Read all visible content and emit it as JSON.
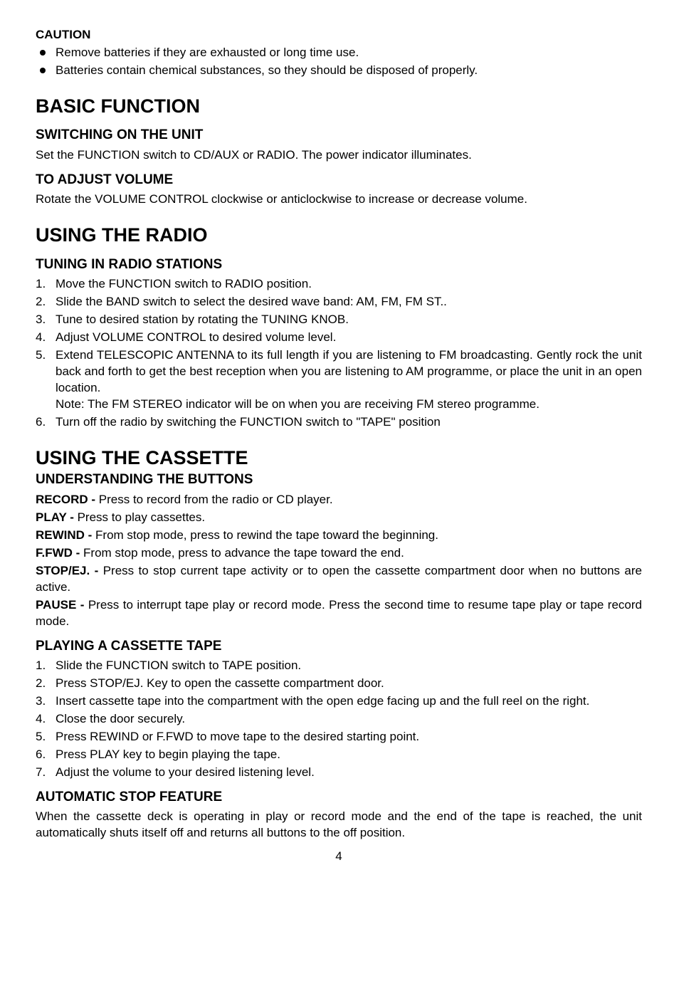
{
  "caution": {
    "title": "CAUTION",
    "items": [
      "Remove batteries if they are exhausted or long time use.",
      "Batteries contain chemical substances, so they should be disposed of properly."
    ]
  },
  "basic_function": {
    "title": "BASIC FUNCTION",
    "switching": {
      "heading": "SWITCHING ON THE UNIT",
      "text": "Set the FUNCTION switch to CD/AUX or RADIO. The power indicator illuminates."
    },
    "volume": {
      "heading": "TO ADJUST VOLUME",
      "text": "Rotate the VOLUME CONTROL clockwise or anticlockwise to increase or decrease volume."
    }
  },
  "using_radio": {
    "title": "USING THE RADIO",
    "tuning": {
      "heading": "TUNING IN RADIO STATIONS",
      "steps": [
        "Move the FUNCTION switch to RADIO position.",
        "Slide the BAND switch to select the desired wave band: AM, FM, FM ST..",
        "Tune to desired station by rotating the TUNING KNOB.",
        "Adjust VOLUME CONTROL to desired volume level.",
        "Extend TELESCOPIC ANTENNA to its full length if you are listening to FM broadcasting. Gently rock the unit back and forth to get the best reception when you are listening to AM programme, or place the unit in an open location.\nNote: The FM STEREO indicator will be on when you are receiving FM stereo programme.",
        "Turn off the radio by switching the FUNCTION switch to \"TAPE\" position"
      ]
    }
  },
  "using_cassette": {
    "title": "USING THE CASSETTE",
    "understanding": {
      "heading": "UNDERSTANDING THE BUTTONS",
      "defs": [
        {
          "term": "RECORD - ",
          "desc": "Press to record from the radio or CD player."
        },
        {
          "term": "PLAY - ",
          "desc": "Press to play cassettes."
        },
        {
          "term": "REWIND - ",
          "desc": "From stop mode, press to rewind the tape toward the beginning."
        },
        {
          "term": "F.FWD - ",
          "desc": "From stop mode, press to advance the tape toward the end."
        },
        {
          "term": "STOP/EJ. - ",
          "desc": "Press to stop current tape activity or to open the cassette compartment door when no buttons are active."
        },
        {
          "term": "PAUSE - ",
          "desc": "Press to interrupt tape play or record mode. Press the second time to resume tape play or tape record mode."
        }
      ]
    },
    "playing": {
      "heading": "PLAYING A CASSETTE TAPE",
      "steps": [
        "Slide the FUNCTION switch to TAPE position.",
        "Press STOP/EJ. Key to open the cassette compartment door.",
        "Insert cassette tape into the compartment with the open edge facing up and the full reel on the right.",
        "Close the door securely.",
        "Press REWIND or F.FWD to move tape to the desired starting point.",
        "Press PLAY key to begin playing the tape.",
        "Adjust the volume to your desired listening level."
      ]
    },
    "auto_stop": {
      "heading": "AUTOMATIC STOP FEATURE",
      "text": "When the cassette deck is operating in play or record mode and the end of the tape is reached, the unit automatically shuts itself off and returns all buttons to the off position."
    }
  },
  "page_number": "4"
}
